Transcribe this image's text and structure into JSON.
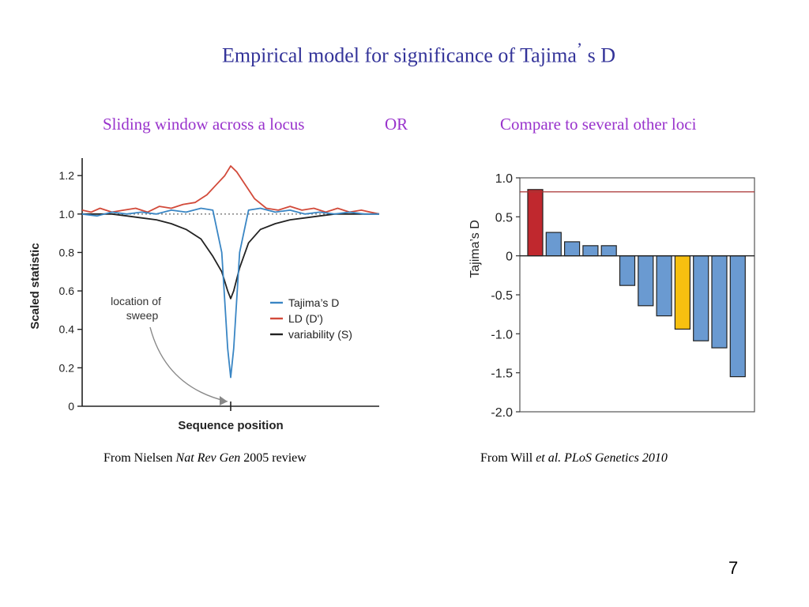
{
  "slide": {
    "title_main": "Empirical model for significance of Tajima",
    "title_quote": "’",
    "title_end": " s D",
    "subtitle_left": "Sliding window across a locus",
    "subtitle_or": "OR",
    "subtitle_right": "Compare to several other loci",
    "caption_left_pre": "From Nielsen ",
    "caption_left_ital": "Nat Rev Gen",
    "caption_left_post": " 2005 review",
    "caption_right_pre": "From Will ",
    "caption_right_ital": "et al. PLoS Genetics 2010",
    "page_number": "7"
  },
  "chart_data": [
    {
      "type": "line",
      "xlabel": "Sequence position",
      "ylabel": "Scaled statistic",
      "ylim": [
        0,
        1.25
      ],
      "yticks": [
        "0",
        "0.2",
        "0.4",
        "0.6",
        "0.8",
        "1.0",
        "1.2"
      ],
      "reference_line": 1.0,
      "annotation": [
        "location of",
        "sweep"
      ],
      "legend_position": "right",
      "series": [
        {
          "name": "Tajima’s D",
          "color": "#3a86c4",
          "x": [
            0,
            0.05,
            0.1,
            0.15,
            0.2,
            0.25,
            0.3,
            0.35,
            0.4,
            0.44,
            0.47,
            0.49,
            0.5,
            0.51,
            0.53,
            0.56,
            0.6,
            0.65,
            0.7,
            0.75,
            0.8,
            0.85,
            0.9,
            0.95,
            1.0
          ],
          "values": [
            1.0,
            0.99,
            1.01,
            1.0,
            1.01,
            1.0,
            1.02,
            1.01,
            1.03,
            1.02,
            0.8,
            0.3,
            0.15,
            0.3,
            0.8,
            1.02,
            1.03,
            1.01,
            1.02,
            1.0,
            1.01,
            1.0,
            1.01,
            1.0,
            1.0
          ]
        },
        {
          "name": "LD (D')",
          "color": "#d24a3a",
          "x": [
            0,
            0.03,
            0.06,
            0.1,
            0.14,
            0.18,
            0.22,
            0.26,
            0.3,
            0.34,
            0.38,
            0.42,
            0.45,
            0.48,
            0.5,
            0.52,
            0.55,
            0.58,
            0.62,
            0.66,
            0.7,
            0.74,
            0.78,
            0.82,
            0.86,
            0.9,
            0.94,
            0.97,
            1.0
          ],
          "values": [
            1.02,
            1.01,
            1.03,
            1.01,
            1.02,
            1.03,
            1.01,
            1.04,
            1.03,
            1.05,
            1.06,
            1.1,
            1.15,
            1.2,
            1.25,
            1.22,
            1.15,
            1.08,
            1.03,
            1.02,
            1.04,
            1.02,
            1.03,
            1.01,
            1.03,
            1.01,
            1.02,
            1.01,
            1.0
          ]
        },
        {
          "name": "variability (S)",
          "color": "#222222",
          "x": [
            0,
            0.05,
            0.1,
            0.15,
            0.2,
            0.25,
            0.3,
            0.35,
            0.4,
            0.44,
            0.47,
            0.49,
            0.5,
            0.51,
            0.53,
            0.56,
            0.6,
            0.65,
            0.7,
            0.75,
            0.8,
            0.85,
            0.9,
            0.95,
            1.0
          ],
          "values": [
            1.0,
            1.0,
            1.0,
            0.99,
            0.98,
            0.97,
            0.95,
            0.92,
            0.87,
            0.78,
            0.7,
            0.6,
            0.56,
            0.6,
            0.72,
            0.85,
            0.92,
            0.95,
            0.97,
            0.98,
            0.99,
            1.0,
            1.0,
            1.0,
            1.0
          ]
        }
      ]
    },
    {
      "type": "bar",
      "ylabel": "Tajima’s D",
      "ylim": [
        -2.0,
        1.0
      ],
      "yticks": [
        "1.0",
        "0.5",
        "0",
        "-0.5",
        "-1.0",
        "-1.5",
        "-2.0"
      ],
      "reference_line": 0.82,
      "values": [
        0.85,
        0.3,
        0.18,
        0.13,
        0.13,
        -0.38,
        -0.64,
        -0.77,
        -0.94,
        -1.09,
        -1.18,
        -1.55
      ],
      "colors": [
        "#c0282e",
        "#6a9ad1",
        "#6a9ad1",
        "#6a9ad1",
        "#6a9ad1",
        "#6a9ad1",
        "#6a9ad1",
        "#6a9ad1",
        "#f7c010",
        "#6a9ad1",
        "#6a9ad1",
        "#6a9ad1"
      ]
    }
  ]
}
